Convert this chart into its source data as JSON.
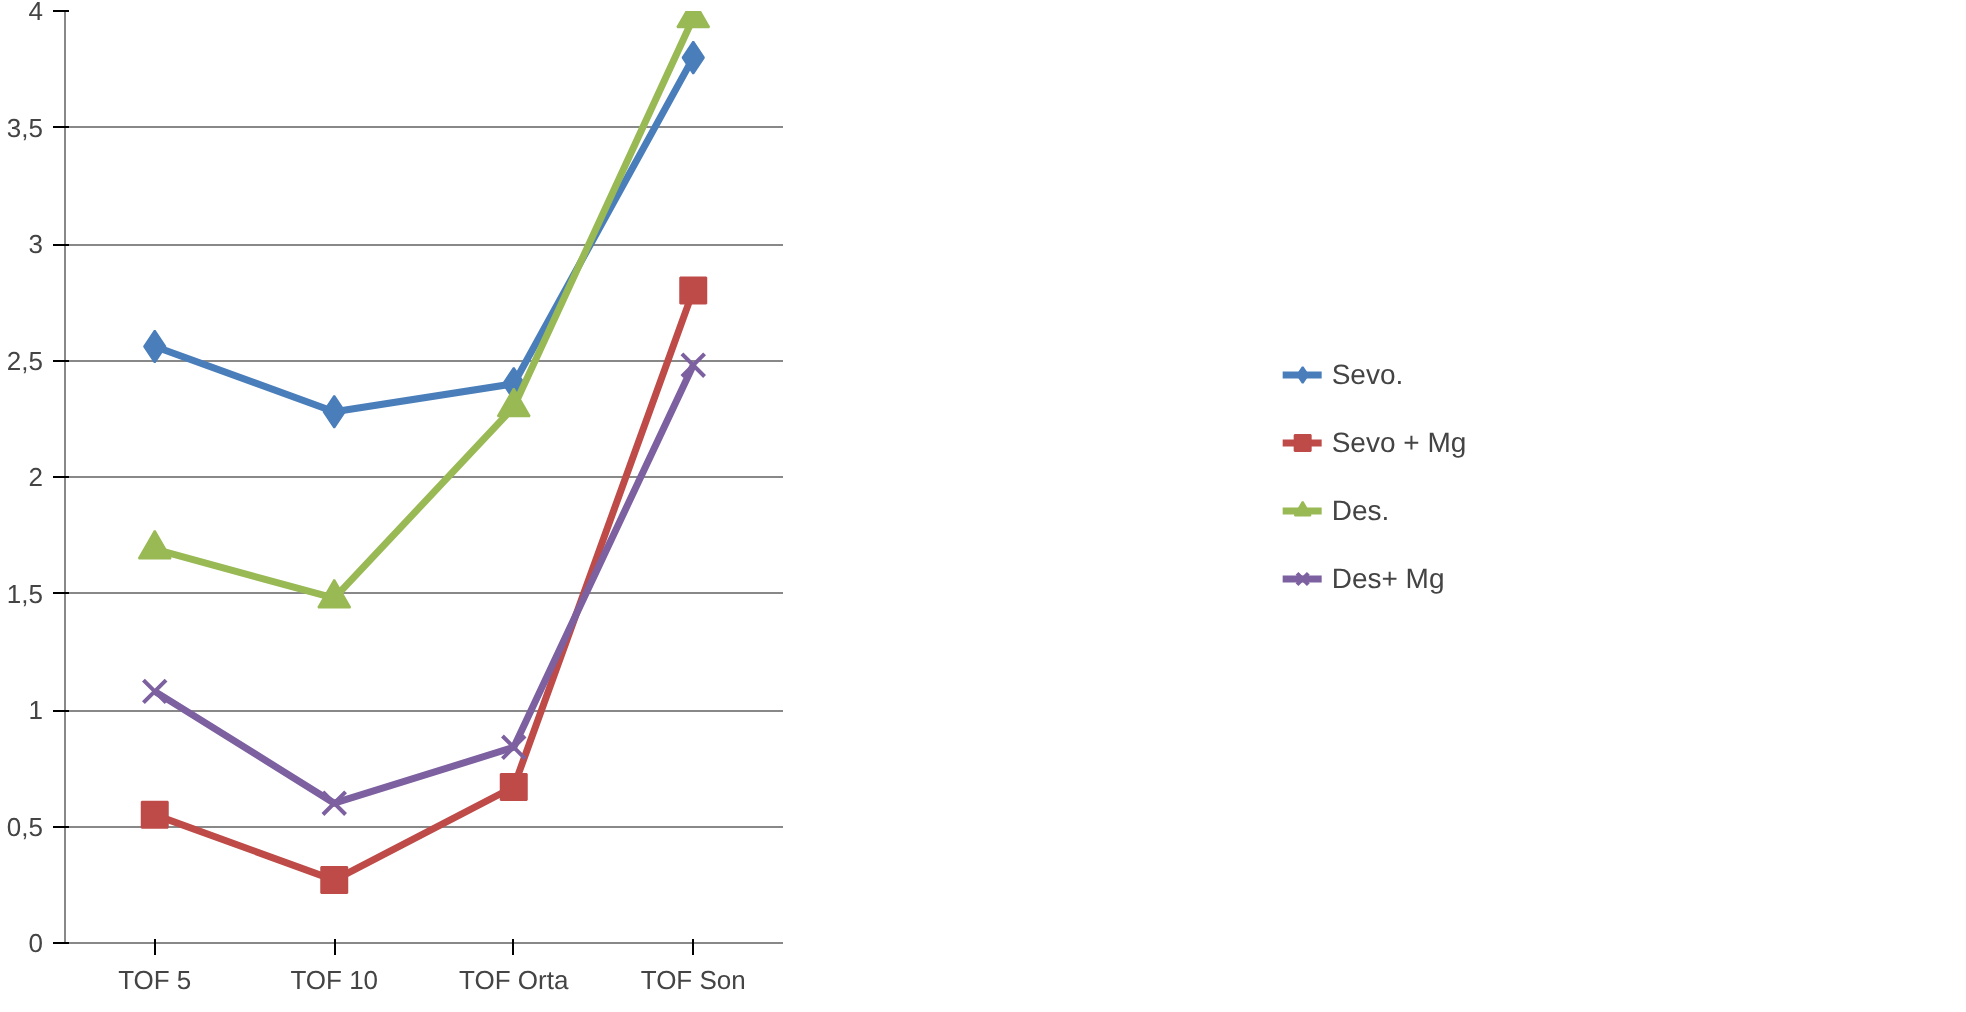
{
  "chart_data": {
    "type": "line",
    "categories": [
      "TOF 5",
      "TOF 10",
      "TOF Orta",
      "TOF Son"
    ],
    "series": [
      {
        "name": "Sevo.",
        "color": "#4a7ebb",
        "marker": "diamond",
        "values": [
          2.56,
          2.28,
          2.4,
          3.8
        ]
      },
      {
        "name": "Sevo + Mg",
        "color": "#be4b48",
        "marker": "square",
        "values": [
          0.55,
          0.27,
          0.67,
          2.8
        ]
      },
      {
        "name": "Des.",
        "color": "#98b954",
        "marker": "triangle",
        "values": [
          1.69,
          1.48,
          2.3,
          3.97
        ]
      },
      {
        "name": "Des+ Mg",
        "color": "#7d60a0",
        "marker": "cross",
        "values": [
          1.08,
          0.6,
          0.84,
          2.48
        ]
      }
    ],
    "ylim": [
      0,
      4
    ],
    "yticks": [
      0,
      {
        "value": 0.5,
        "label": "0,5"
      },
      1,
      {
        "value": 1.5,
        "label": "1,5"
      },
      2,
      {
        "value": 2.5,
        "label": "2,5"
      },
      3,
      {
        "value": 3.5,
        "label": "3,5"
      },
      4
    ],
    "grid": "y",
    "legend": "right",
    "line_style": "solid"
  }
}
